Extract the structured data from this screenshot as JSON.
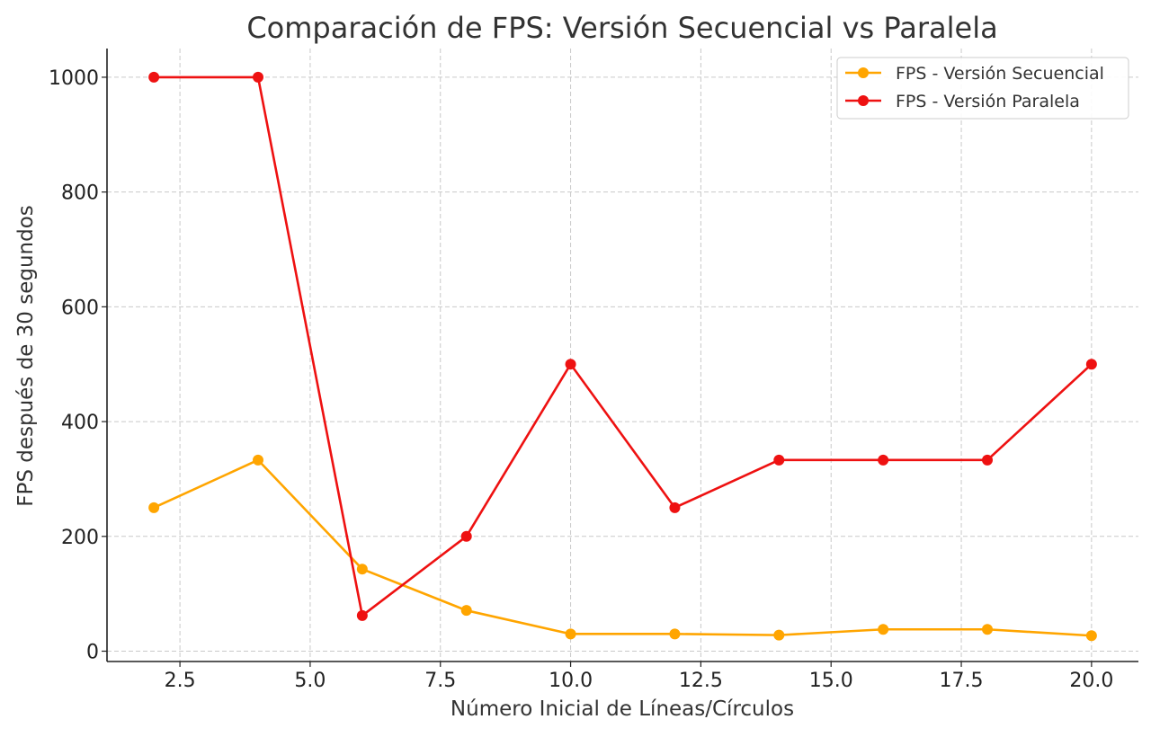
{
  "chart_data": {
    "type": "line",
    "title": "Comparación de FPS: Versión Secuencial vs Paralela",
    "xlabel": "Número Inicial de Líneas/Círculos",
    "ylabel": "FPS después de 30 segundos",
    "x": [
      2,
      4,
      6,
      8,
      10,
      12,
      14,
      16,
      18,
      20
    ],
    "xlim": [
      1.1,
      20.9
    ],
    "ylim": [
      -18,
      1050
    ],
    "xticks": [
      2.5,
      5.0,
      7.5,
      10.0,
      12.5,
      15.0,
      17.5,
      20.0
    ],
    "xtick_labels": [
      "2.5",
      "5.0",
      "7.5",
      "10.0",
      "12.5",
      "15.0",
      "17.5",
      "20.0"
    ],
    "yticks": [
      0,
      200,
      400,
      600,
      800,
      1000
    ],
    "ytick_labels": [
      "0",
      "200",
      "400",
      "600",
      "800",
      "1000"
    ],
    "grid": true,
    "legend_position": "top-right",
    "series": [
      {
        "name": "FPS - Versión Secuencial",
        "color": "#FFA500",
        "marker": "circle",
        "values": [
          250,
          333,
          143,
          71,
          30,
          30,
          28,
          38,
          38,
          27
        ]
      },
      {
        "name": "FPS - Versión Paralela",
        "color": "#EE1111",
        "marker": "circle",
        "values": [
          1000,
          1000,
          62,
          200,
          500,
          250,
          333,
          333,
          333,
          500
        ]
      }
    ]
  }
}
